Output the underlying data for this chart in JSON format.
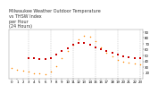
{
  "title": "Milwaukee Weather Outdoor Temperature\nvs THSW Index\nper Hour\n(24 Hours)",
  "title_fontsize": 3.5,
  "title_color": "#333333",
  "background_color": "#ffffff",
  "plot_bg_color": "#ffffff",
  "grid_color": "#aaaaaa",
  "hours": [
    0,
    1,
    2,
    3,
    4,
    5,
    6,
    7,
    8,
    9,
    10,
    11,
    12,
    13,
    14,
    15,
    16,
    17,
    18,
    19,
    20,
    21,
    22,
    23
  ],
  "temp_values": [
    null,
    null,
    null,
    46,
    45,
    44,
    44,
    46,
    51,
    57,
    63,
    68,
    72,
    72,
    68,
    64,
    60,
    57,
    54,
    51,
    49,
    47,
    46,
    46
  ],
  "thsw_values": [
    28,
    26,
    24,
    22,
    20,
    19,
    18,
    22,
    32,
    46,
    58,
    68,
    78,
    84,
    82,
    74,
    64,
    55,
    48,
    43,
    40,
    38,
    36,
    34
  ],
  "temp_color": "#cc0000",
  "thsw_color": "#ff8800",
  "marker_size": 1.2,
  "ylim": [
    10,
    95
  ],
  "xlim": [
    -0.5,
    23.5
  ],
  "ytick_values": [
    20,
    30,
    40,
    50,
    60,
    70,
    80,
    90
  ],
  "ytick_labels": [
    "20",
    "30",
    "40",
    "50",
    "60",
    "70",
    "80",
    "90"
  ],
  "xtick_positions": [
    0,
    1,
    2,
    3,
    4,
    5,
    6,
    7,
    8,
    9,
    10,
    11,
    12,
    13,
    14,
    15,
    16,
    17,
    18,
    19,
    20,
    21,
    22,
    23
  ],
  "xtick_labels": [
    "0",
    "1",
    "2",
    "3",
    "4",
    "5",
    "6",
    "7",
    "8",
    "9",
    "10",
    "11",
    "12",
    "13",
    "14",
    "15",
    "16",
    "17",
    "18",
    "19",
    "20",
    "21",
    "22",
    "23"
  ],
  "tick_fontsize": 2.8,
  "vgrid_positions": [
    3,
    7,
    11,
    15,
    19,
    23
  ],
  "yaxis_right": true
}
